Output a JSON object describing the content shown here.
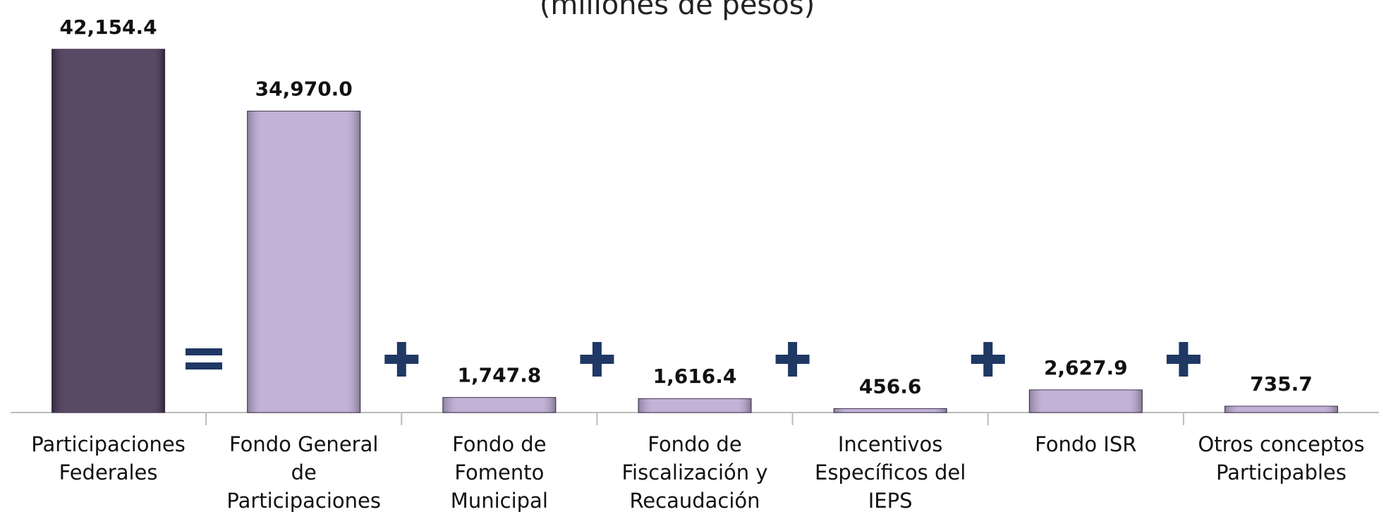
{
  "chart_data": {
    "type": "bar",
    "subtitle": "(millones de pesos)",
    "categories": [
      "Participaciones\nFederales",
      "Fondo General\nde\nParticipaciones",
      "Fondo de\nFomento\nMunicipal",
      "Fondo de\nFiscalización y\nRecaudación",
      "Incentivos\nEspecíficos del\nIEPS",
      "Fondo ISR",
      "Otros conceptos\nParticipables"
    ],
    "values": [
      42154.4,
      34970.0,
      1747.8,
      1616.4,
      456.6,
      2627.9,
      735.7
    ],
    "value_labels": [
      "42,154.4",
      "34,970.0",
      "1,747.8",
      "1,616.4",
      "456.6",
      "2,627.9",
      "735.7"
    ],
    "colors": [
      "#463553",
      "#bba9d3",
      "#bba9d3",
      "#bba9d3",
      "#bba9d3",
      "#bba9d3",
      "#bba9d3"
    ],
    "ylim": [
      0,
      45000
    ]
  }
}
